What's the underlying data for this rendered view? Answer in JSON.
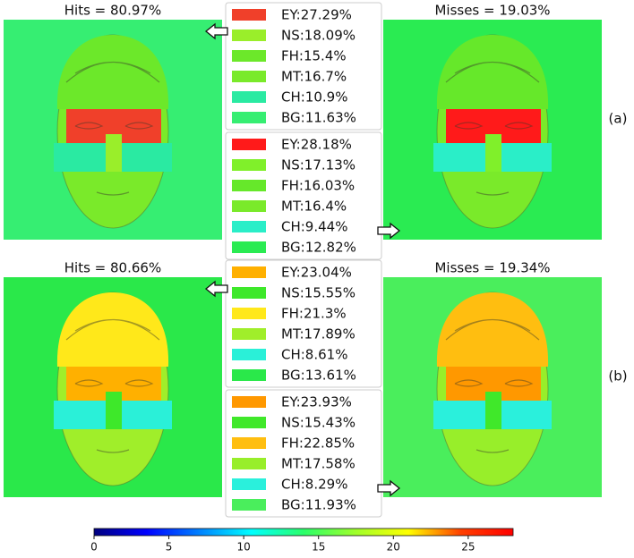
{
  "rows": [
    {
      "label": "(a)",
      "hits_title": "Hits = 80.97%",
      "misses_title": "Misses = 19.03%",
      "hits_legend": [
        {
          "text": "EY:27.29%",
          "color": "#f0402a"
        },
        {
          "text": "NS:18.09%",
          "color": "#9aee2a"
        },
        {
          "text": "FH:15.4%",
          "color": "#6ce82a"
        },
        {
          "text": "MT:16.7%",
          "color": "#7aea2a"
        },
        {
          "text": "CH:10.9%",
          "color": "#2aeaa2"
        },
        {
          "text": "BG:11.63%",
          "color": "#36ee72"
        }
      ],
      "misses_legend": [
        {
          "text": "EY:28.18%",
          "color": "#ff1a1a"
        },
        {
          "text": "NS:17.13%",
          "color": "#80f02a"
        },
        {
          "text": "FH:16.03%",
          "color": "#66e82a"
        },
        {
          "text": "MT:16.4%",
          "color": "#7aea2a"
        },
        {
          "text": "CH:9.44%",
          "color": "#2aeec8"
        },
        {
          "text": "BG:12.82%",
          "color": "#2aeb52"
        }
      ]
    },
    {
      "label": "(b)",
      "hits_title": "Hits = 80.66%",
      "misses_title": "Misses = 19.34%",
      "hits_legend": [
        {
          "text": "EY:23.04%",
          "color": "#ffb000"
        },
        {
          "text": "NS:15.55%",
          "color": "#3ee82a"
        },
        {
          "text": "FH:21.3%",
          "color": "#ffe81a"
        },
        {
          "text": "MT:17.89%",
          "color": "#a0ee2a"
        },
        {
          "text": "CH:8.61%",
          "color": "#2af0d8"
        },
        {
          "text": "BG:13.61%",
          "color": "#2ae84a"
        }
      ],
      "misses_legend": [
        {
          "text": "EY:23.93%",
          "color": "#ff9800"
        },
        {
          "text": "NS:15.43%",
          "color": "#40e82a"
        },
        {
          "text": "FH:22.85%",
          "color": "#ffbe10"
        },
        {
          "text": "MT:17.58%",
          "color": "#98ee2a"
        },
        {
          "text": "CH:8.29%",
          "color": "#2af0dc"
        },
        {
          "text": "BG:11.93%",
          "color": "#4aee5c"
        }
      ]
    }
  ],
  "colorbar": {
    "lim": [
      0,
      28
    ],
    "ticks": [
      0,
      5,
      10,
      15,
      20,
      25
    ]
  }
}
